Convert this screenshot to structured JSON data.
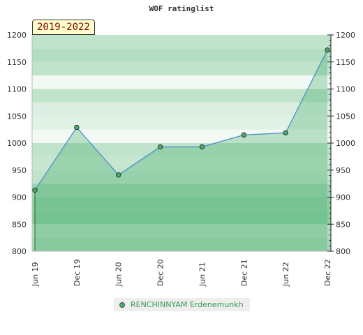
{
  "title": "WOF ratinglist",
  "period": "2019-2022",
  "chart_data": {
    "type": "line",
    "title": "WOF ratinglist",
    "x_tick_labels": [
      "Jun 19",
      "Dec 19",
      "Jun 20",
      "Dec 20",
      "Jun 21",
      "Dec 21",
      "Jun 22",
      "Dec 22"
    ],
    "y_ticks": [
      800,
      850,
      900,
      950,
      1000,
      1050,
      1100,
      1150,
      1200
    ],
    "ylim": [
      800,
      1200
    ],
    "y_axis_both_sides": true,
    "series": [
      {
        "name": "RENCHINNYAM Erdenemunkh",
        "points": [
          {
            "x": "Jun 19",
            "y": 913
          },
          {
            "x": "Dec 19",
            "y": 1029
          },
          {
            "x": "Jun 20",
            "y": 941
          },
          {
            "x": "Dec 20",
            "y": 993
          },
          {
            "x": "Jun 21",
            "y": 993
          },
          {
            "x": "Dec 21",
            "y": 1015
          },
          {
            "x": "Jun 22",
            "y": 1019
          },
          {
            "x": "Dec 22",
            "y": 1172
          }
        ]
      }
    ],
    "legend_position": "bottom",
    "colors": {
      "line": "#4a90c8",
      "area": "#3aa862",
      "marker": "#4fa86a",
      "band_dark": "#7ec896",
      "band_mid": "#b4dec2",
      "band_light": "#f2f8f4"
    }
  }
}
